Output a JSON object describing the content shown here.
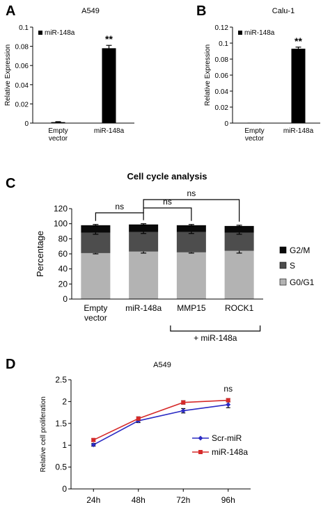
{
  "chart_data": [
    {
      "panel": "A",
      "type": "bar",
      "title": "A549",
      "ylabel": "Relative Expression",
      "categories": [
        [
          "Empty",
          "vector"
        ],
        [
          "miR-148a"
        ]
      ],
      "values": [
        0.001,
        0.078
      ],
      "errors": [
        0.0005,
        0.003
      ],
      "ylim": [
        0,
        0.1
      ],
      "yticks": [
        "0",
        "0.02",
        "0.04",
        "0.06",
        "0.08",
        "0.1"
      ],
      "legend": "miR-148a",
      "annotations": [
        "**"
      ]
    },
    {
      "panel": "B",
      "type": "bar",
      "title": "Calu-1",
      "ylabel": "Relative Expression",
      "categories": [
        [
          "Empty",
          "vector"
        ],
        [
          "miR-148a"
        ]
      ],
      "values": [
        0.0005,
        0.093
      ],
      "errors": [
        0.0003,
        0.002
      ],
      "ylim": [
        0,
        0.12
      ],
      "yticks": [
        "0",
        "0.02",
        "0.04",
        "0.06",
        "0.08",
        "0.1",
        "0.12"
      ],
      "legend": "miR-148a",
      "annotations": [
        "**"
      ]
    },
    {
      "panel": "C",
      "type": "bar",
      "stacked": true,
      "title": "Cell cycle analysis",
      "ylabel": "Percentage",
      "categories": [
        [
          "Empty",
          "vector"
        ],
        [
          "miR-148a"
        ],
        [
          "MMP15"
        ],
        [
          "ROCK1"
        ]
      ],
      "group_label": "+ miR-148a",
      "ylim": [
        0,
        120
      ],
      "yticks": [
        "0",
        "20",
        "40",
        "60",
        "80",
        "100",
        "120"
      ],
      "series": [
        {
          "name": "G0/G1",
          "color": "#b3b3b3",
          "values": [
            61,
            63,
            62,
            64
          ],
          "errors": [
            1,
            2,
            1,
            3
          ]
        },
        {
          "name": "S",
          "color": "#4d4d4d",
          "values": [
            27,
            26,
            27,
            24
          ],
          "errors": [
            2,
            2,
            2,
            2
          ]
        },
        {
          "name": "G2/M",
          "color": "#0a0a0a",
          "values": [
            10,
            10,
            9,
            9
          ],
          "errors": [
            1,
            1,
            1,
            1
          ]
        }
      ],
      "legend_order": [
        "G2/M",
        "S",
        "G0/G1"
      ],
      "annotations": [
        "ns",
        "ns",
        "ns"
      ]
    },
    {
      "panel": "D",
      "type": "line",
      "title": "A549",
      "ylabel": "Relative cell proliferation",
      "categories": [
        "24h",
        "48h",
        "72h",
        "96h"
      ],
      "ylim": [
        0,
        2.5
      ],
      "yticks": [
        "0",
        "0.5",
        "1",
        "1.5",
        "2",
        "2.5"
      ],
      "series": [
        {
          "name": "Scr-miR",
          "color": "#2b2bc4",
          "values": [
            1.01,
            1.56,
            1.79,
            1.93
          ],
          "errors": [
            0.03,
            0.04,
            0.05,
            0.07
          ]
        },
        {
          "name": "miR-148a",
          "color": "#d62a2a",
          "values": [
            1.12,
            1.61,
            1.98,
            2.03
          ],
          "errors": [
            0.03,
            0.04,
            0.04,
            0.04
          ]
        }
      ],
      "annotations": [
        "ns"
      ]
    }
  ]
}
